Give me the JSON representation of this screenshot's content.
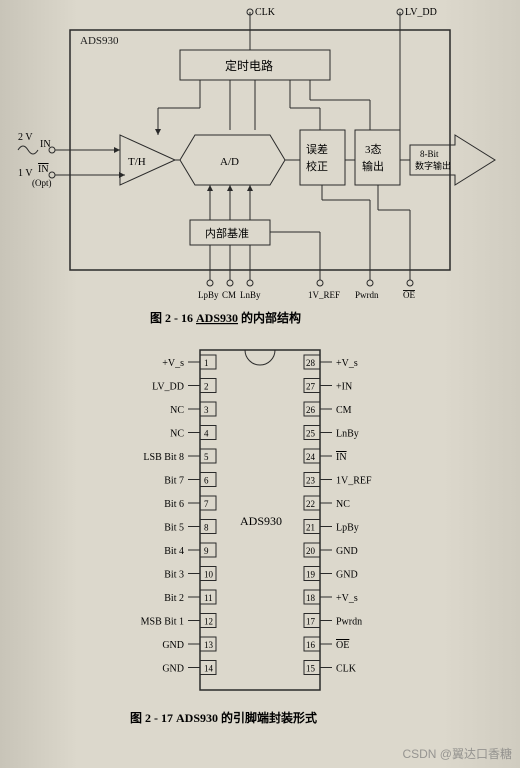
{
  "block_diagram": {
    "chip_label": "ADS930",
    "top_inputs": [
      "CLK",
      "LV_DD"
    ],
    "left_inputs": {
      "voltage_top": "2 V",
      "voltage_bot": "1 V",
      "in": "IN",
      "in_bar": "IN",
      "opt": "(Opt)"
    },
    "blocks": {
      "timing": "定时电路",
      "th": "T/H",
      "ad": "A/D",
      "error": "误差\n校正",
      "tristate": "3态\n输出",
      "output": "8-Bit\n数字输出",
      "ref": "内部基准"
    },
    "bottom_pins": [
      "LpBy",
      "CM",
      "LnBy",
      "1V_REF",
      "Pwrdn",
      "OE"
    ],
    "caption": "图 2 - 16  ADS930 的内部结构",
    "colors": {
      "stroke": "#2a2a2a",
      "fill": "none",
      "text": "#1a1a1a"
    }
  },
  "pinout": {
    "chip_label": "ADS930",
    "left_pins": [
      {
        "n": 1,
        "name": "+V_s"
      },
      {
        "n": 2,
        "name": "LV_DD"
      },
      {
        "n": 3,
        "name": "NC"
      },
      {
        "n": 4,
        "name": "NC"
      },
      {
        "n": 5,
        "name": "LSB Bit 8"
      },
      {
        "n": 6,
        "name": "Bit 7"
      },
      {
        "n": 7,
        "name": "Bit 6"
      },
      {
        "n": 8,
        "name": "Bit 5"
      },
      {
        "n": 9,
        "name": "Bit 4"
      },
      {
        "n": 10,
        "name": "Bit 3"
      },
      {
        "n": 11,
        "name": "Bit 2"
      },
      {
        "n": 12,
        "name": "MSB Bit 1"
      },
      {
        "n": 13,
        "name": "GND"
      },
      {
        "n": 14,
        "name": "GND"
      }
    ],
    "right_pins": [
      {
        "n": 28,
        "name": "+V_s"
      },
      {
        "n": 27,
        "name": "+IN"
      },
      {
        "n": 26,
        "name": "CM"
      },
      {
        "n": 25,
        "name": "LnBy"
      },
      {
        "n": 24,
        "name": "IN",
        "bar": true
      },
      {
        "n": 23,
        "name": "1V_REF"
      },
      {
        "n": 22,
        "name": "NC"
      },
      {
        "n": 21,
        "name": "LpBy"
      },
      {
        "n": 20,
        "name": "GND"
      },
      {
        "n": 19,
        "name": "GND"
      },
      {
        "n": 18,
        "name": "+V_s"
      },
      {
        "n": 17,
        "name": "Pwrdn"
      },
      {
        "n": 16,
        "name": "OE",
        "bar": true
      },
      {
        "n": 15,
        "name": "CLK"
      }
    ],
    "caption": "图 2 - 17  ADS930 的引脚端封装形式",
    "colors": {
      "stroke": "#2a2a2a",
      "text": "#1a1a1a"
    }
  },
  "watermark": "CSDN @翼达口香糖"
}
